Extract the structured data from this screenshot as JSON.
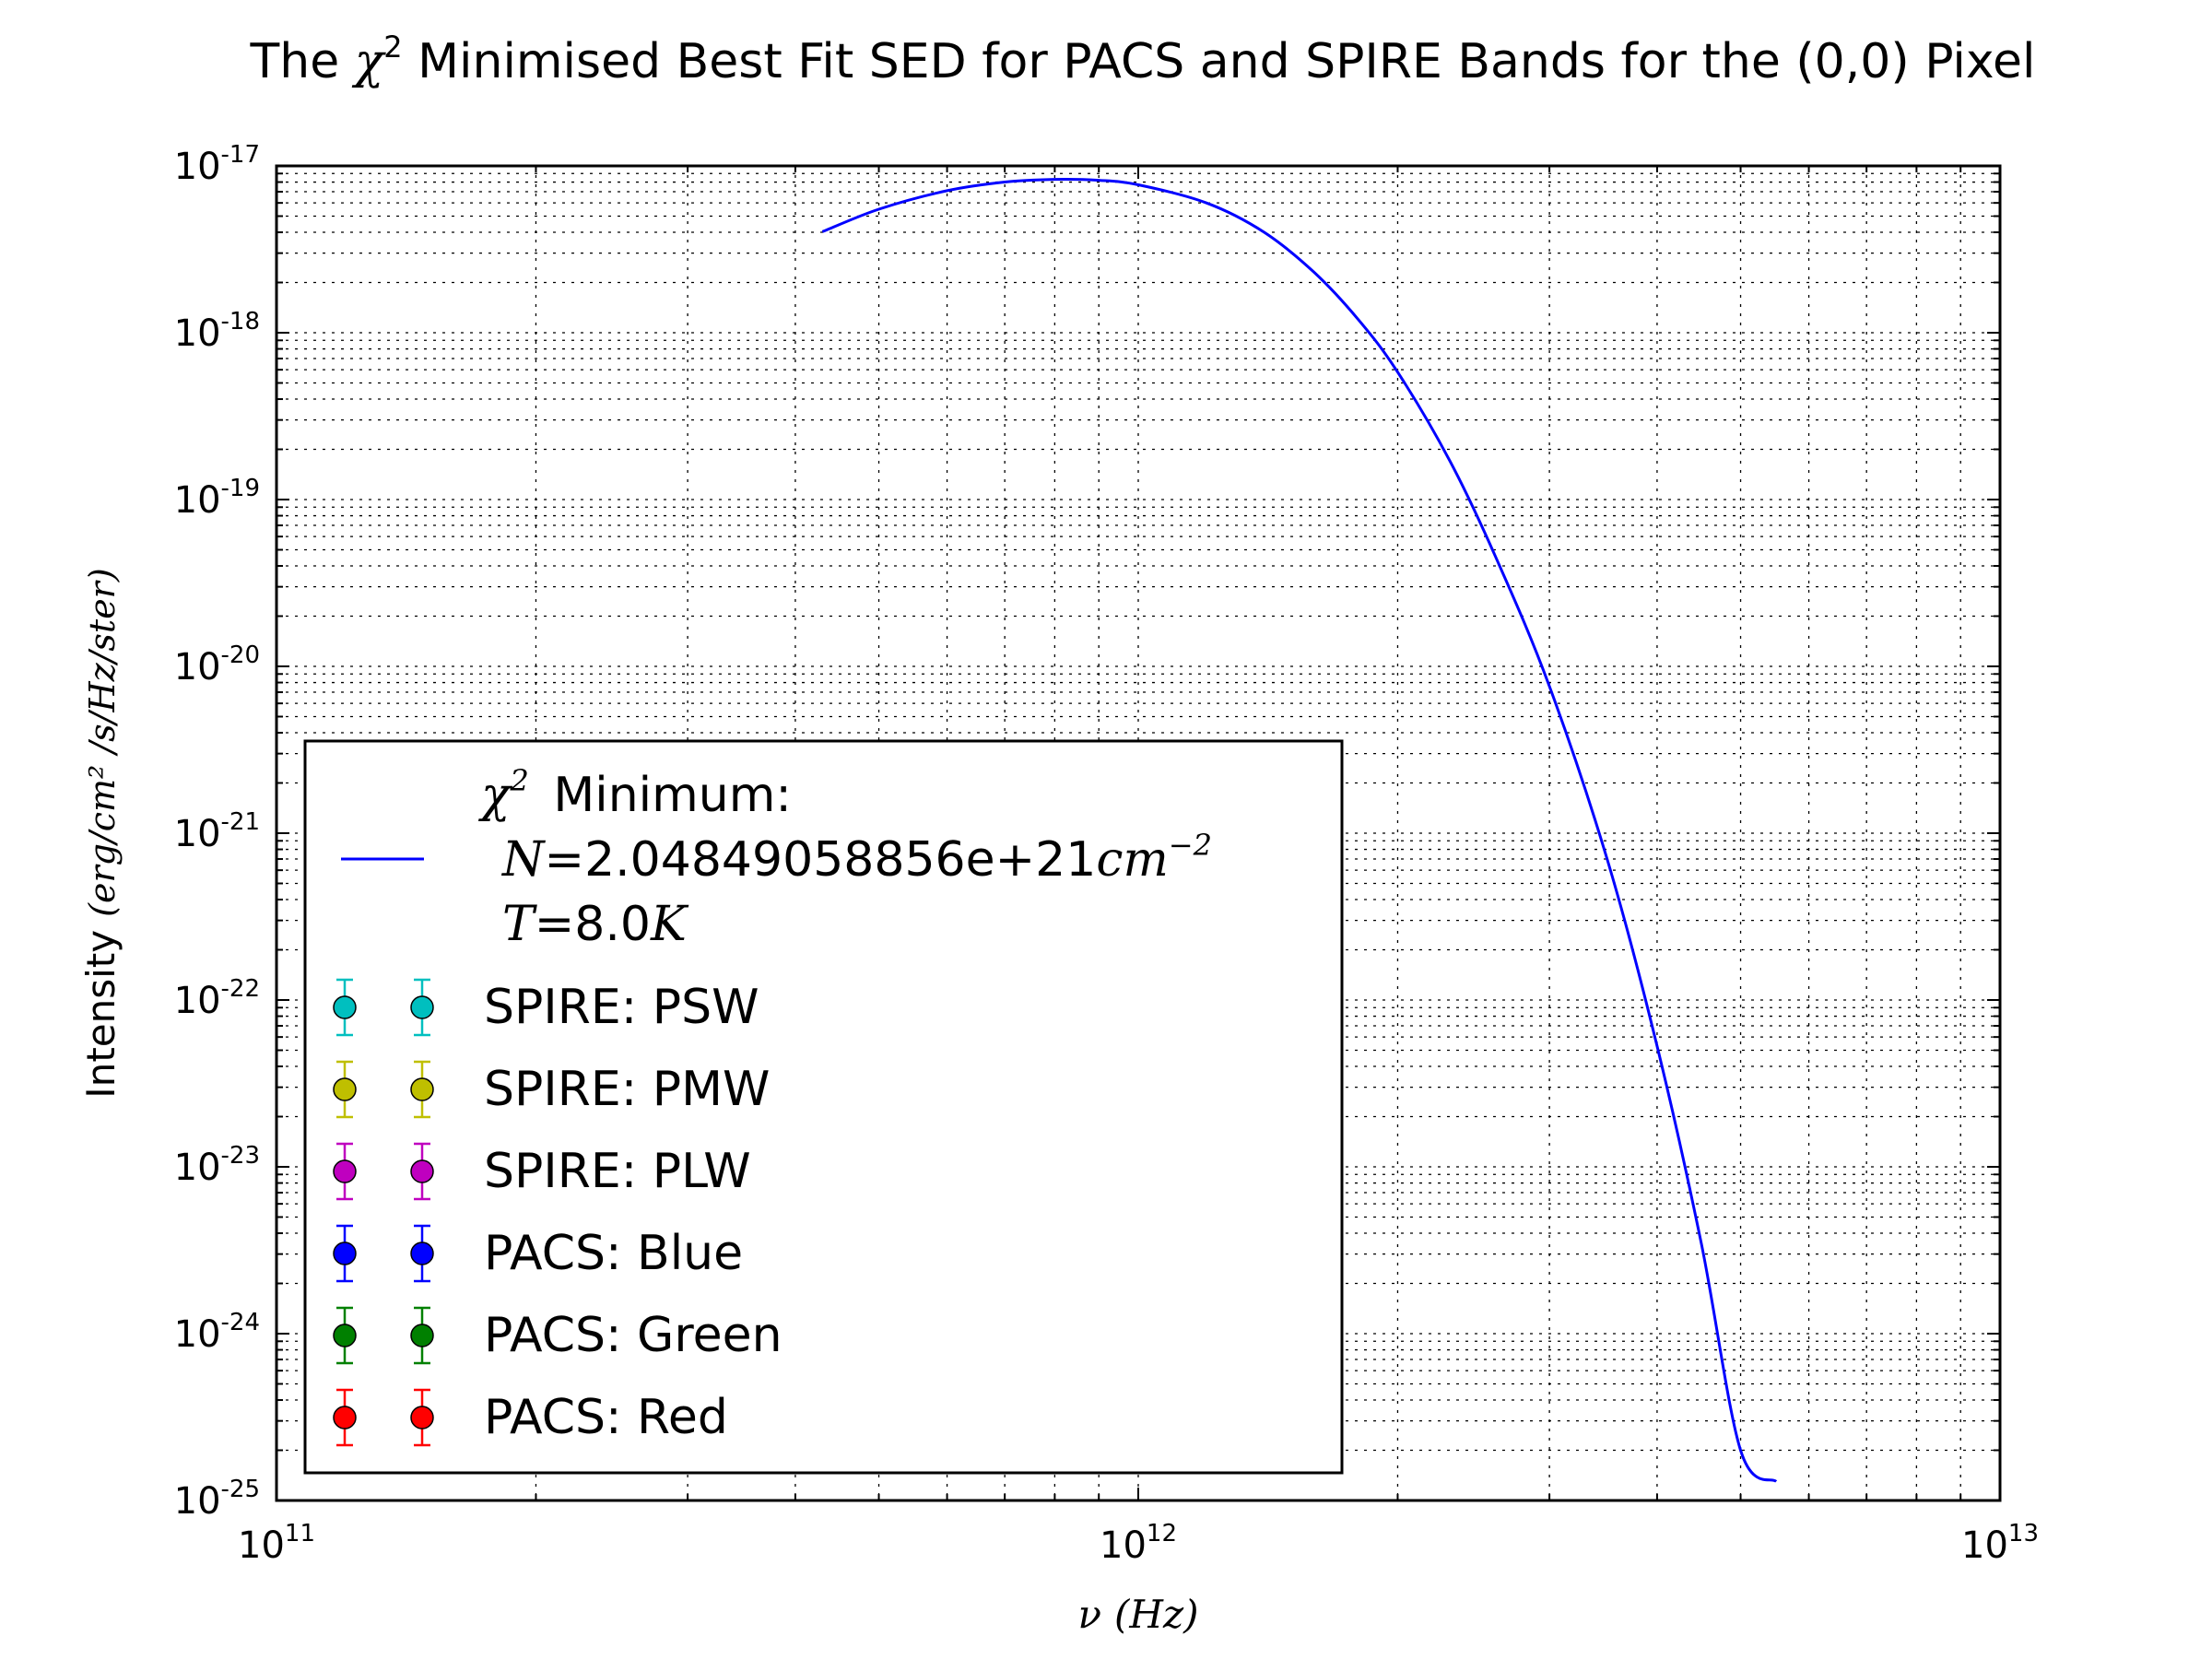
{
  "chart_data": {
    "type": "line",
    "title": {
      "prefix": "The ",
      "symbol": "χ",
      "sup": "2",
      "suffix": " Minimised Best Fit SED for PACS and SPIRE Bands for the (0,0) Pixel"
    },
    "xlabel": {
      "sym": "ν",
      "unit": "(Hz)"
    },
    "ylabel": {
      "word": "Intensity",
      "unit": "(erg/cm² /s/Hz/ster)"
    },
    "x_scale": "log",
    "y_scale": "log",
    "xlim": [
      100000000000.0,
      10000000000000.0
    ],
    "ylim": [
      1e-25,
      1e-17
    ],
    "grid": true,
    "x_ticks": [
      {
        "base": "10",
        "exp": "11",
        "value": 100000000000.0
      },
      {
        "base": "10",
        "exp": "12",
        "value": 1000000000000.0
      },
      {
        "base": "10",
        "exp": "13",
        "value": 10000000000000.0
      }
    ],
    "y_ticks": [
      {
        "base": "10",
        "exp": "-17",
        "value": 1e-17
      },
      {
        "base": "10",
        "exp": "-18",
        "value": 1e-18
      },
      {
        "base": "10",
        "exp": "-19",
        "value": 1e-19
      },
      {
        "base": "10",
        "exp": "-20",
        "value": 1e-20
      },
      {
        "base": "10",
        "exp": "-21",
        "value": 1e-21
      },
      {
        "base": "10",
        "exp": "-22",
        "value": 1e-22
      },
      {
        "base": "10",
        "exp": "-23",
        "value": 1e-23
      },
      {
        "base": "10",
        "exp": "-24",
        "value": 1e-24
      },
      {
        "base": "10",
        "exp": "-25",
        "value": 1e-25
      }
    ],
    "series": [
      {
        "kind": "line",
        "color": "#0000ff",
        "x": [
          430000000000.0,
          500000000000.0,
          600000000000.0,
          700000000000.0,
          800000000000.0,
          900000000000.0,
          1000000000000.0,
          1200000000000.0,
          1400000000000.0,
          1600000000000.0,
          1800000000000.0,
          2000000000000.0,
          2300000000000.0,
          2600000000000.0,
          3000000000000.0,
          3500000000000.0,
          4000000000000.0,
          4500000000000.0,
          5000000000000.0,
          5500000000000.0
        ],
        "y": [
          4.03e-18,
          5.5e-18,
          7.1e-18,
          8e-18,
          8.3e-18,
          8.2e-18,
          7.7e-18,
          6e-18,
          4e-18,
          2.3e-18,
          1.2e-18,
          5.8e-19,
          1.7e-19,
          4.5e-20,
          7.6e-21,
          7e-22,
          5.3e-23,
          3.5e-24,
          2e-25,
          1.3e-25
        ]
      }
    ],
    "legend": {
      "placement": "lower-left",
      "fit_entry": {
        "color": "#0000ff",
        "line1": {
          "sym": "χ",
          "sup": "2",
          "text": " Minimum:"
        },
        "line2": {
          "sym": "N",
          "text": "=2.04849058856e+21",
          "unit": "cm",
          "sup": "−2"
        },
        "line3": {
          "sym": "T",
          "text": "=8.0",
          "unit": "K"
        }
      },
      "entries": [
        {
          "label": "SPIRE: PSW",
          "color": "#00bfbf"
        },
        {
          "label": "SPIRE: PMW",
          "color": "#bfbf00"
        },
        {
          "label": "SPIRE: PLW",
          "color": "#bf00bf"
        },
        {
          "label": "PACS: Blue",
          "color": "#0000ff"
        },
        {
          "label": "PACS: Green",
          "color": "#008000"
        },
        {
          "label": "PACS: Red",
          "color": "#ff0000"
        }
      ]
    }
  }
}
